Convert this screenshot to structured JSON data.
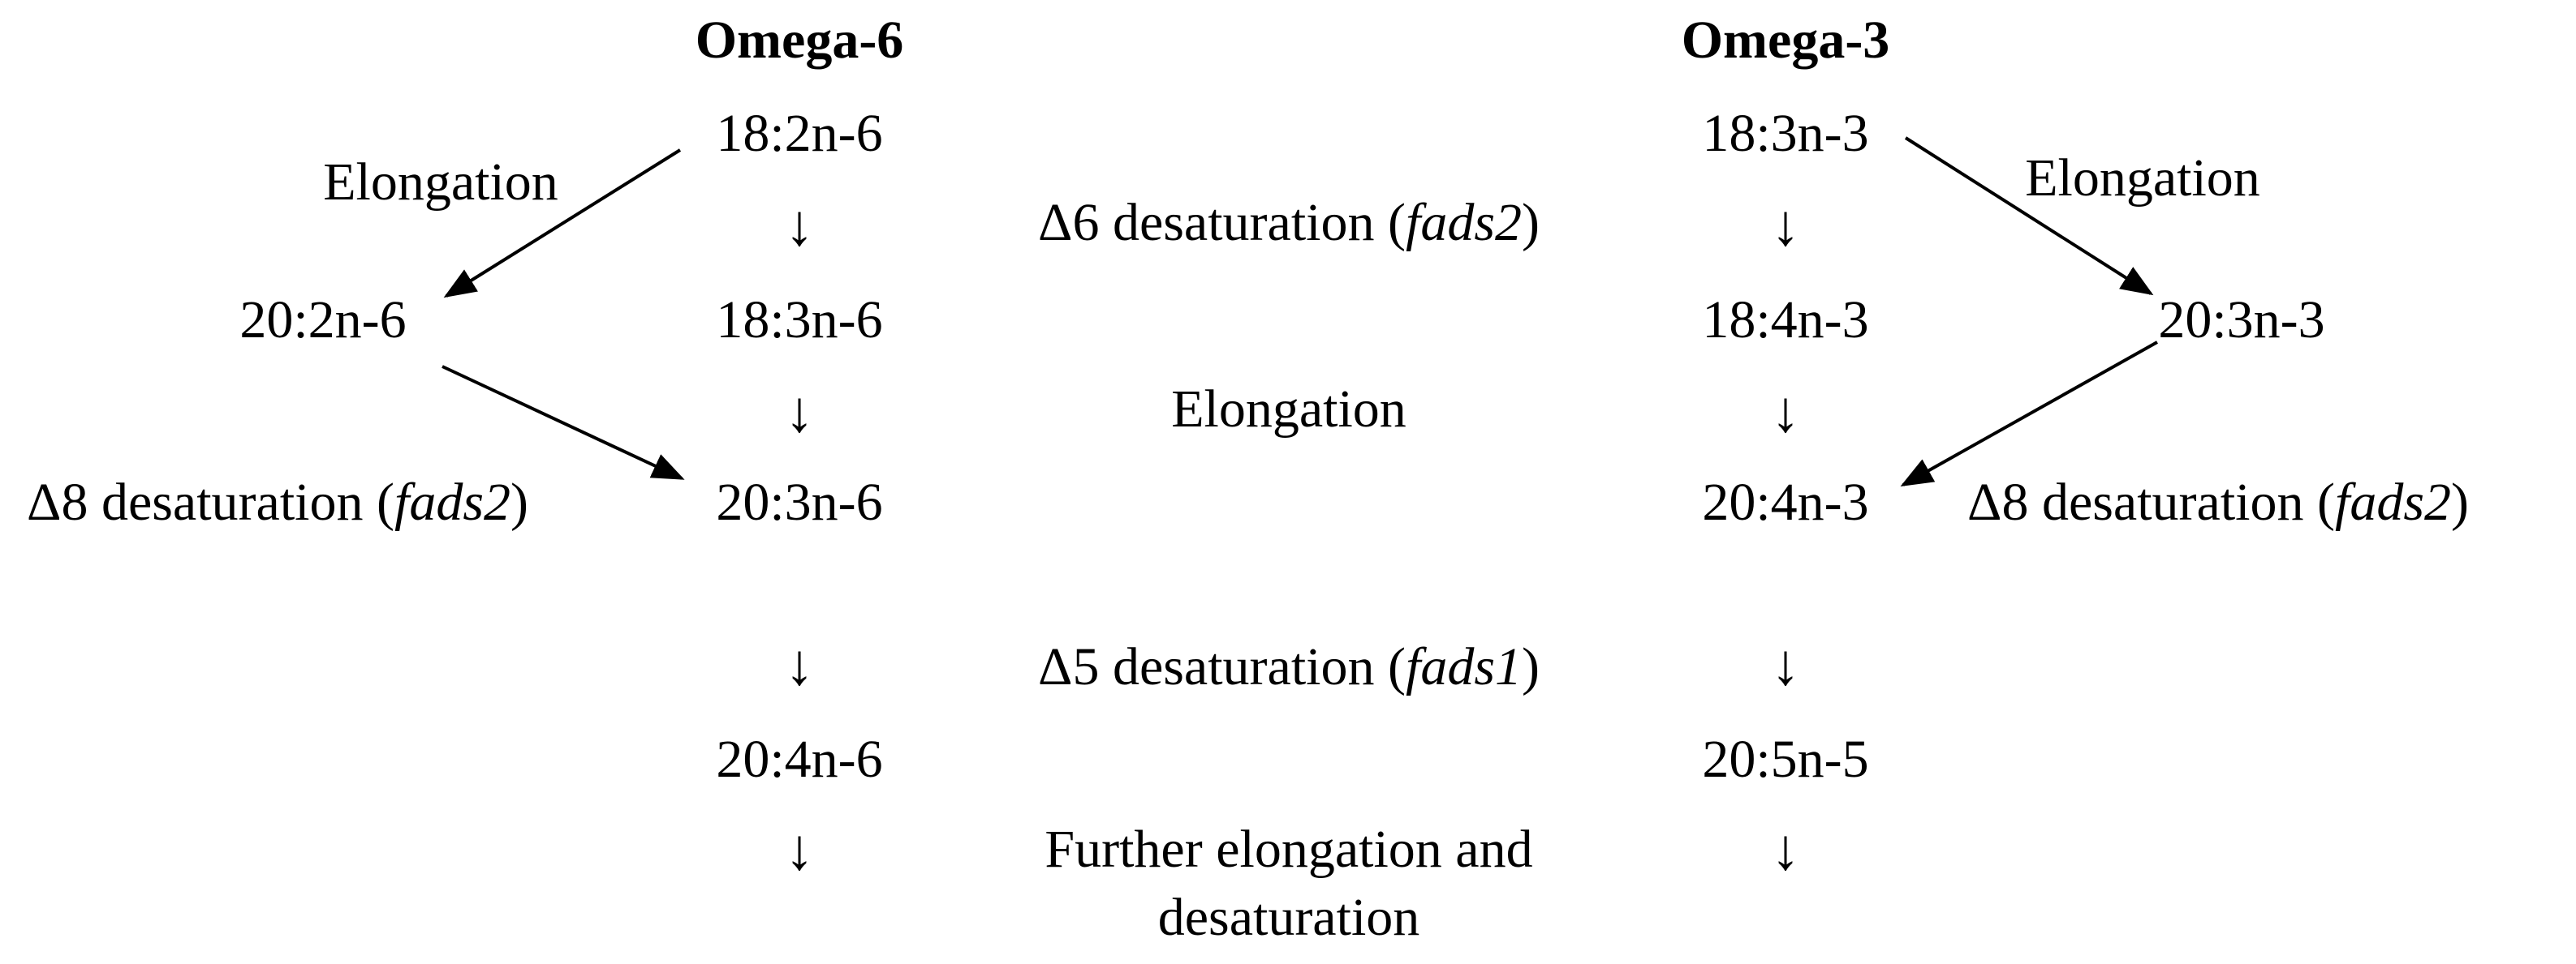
{
  "headers": {
    "omega6": "Omega-6",
    "omega3": "Omega-3"
  },
  "omega6": {
    "la": "18:2n-6",
    "gla": "18:3n-6",
    "eda": "20:2n-6",
    "dgla": "20:3n-6",
    "ara": "20:4n-6",
    "elongation_label": "Elongation",
    "d8_label": "Δ8 desaturation (",
    "d8_gene": "fads2",
    "d8_close": ")"
  },
  "omega3": {
    "ala": "18:3n-3",
    "sda": "18:4n-3",
    "ete": "20:3n-3",
    "eta": "20:4n-3",
    "epa": "20:5n-5",
    "elongation_label": "Elongation",
    "d8_label": "Δ8 desaturation (",
    "d8_gene": "fads2",
    "d8_close": ")"
  },
  "center": {
    "d6_label": "Δ6 desaturation (",
    "d6_gene": "fads2",
    "d6_close": ")",
    "elongation": "Elongation",
    "d5_label": "Δ5 desaturation (",
    "d5_gene": "fads1",
    "d5_close": ")",
    "further_line1": "Further elongation and",
    "further_line2": "desaturation"
  },
  "down_arrow": "↓",
  "colors": {
    "ink": "#000000",
    "background": "#ffffff"
  }
}
